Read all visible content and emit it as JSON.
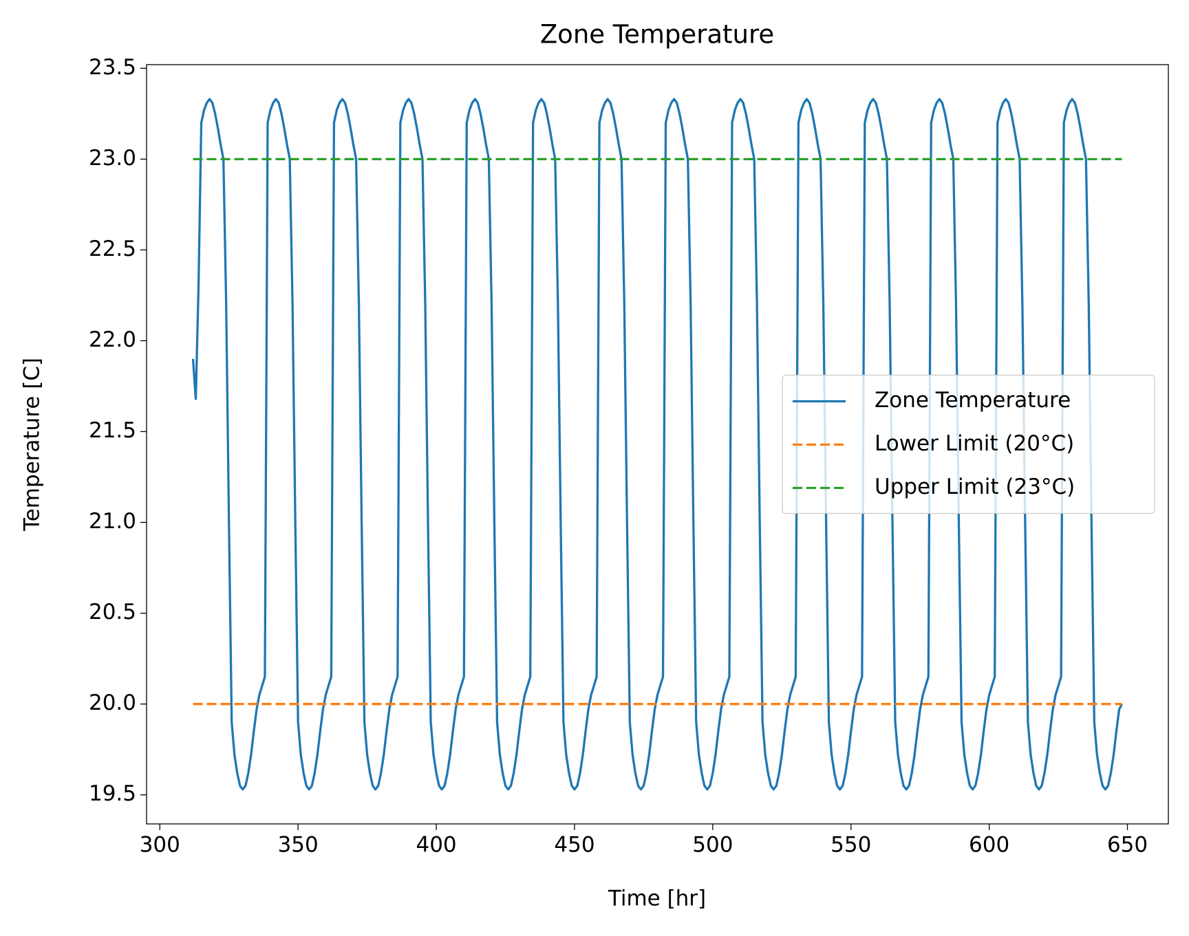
{
  "chart_data": {
    "type": "line",
    "title": "Zone Temperature",
    "xlabel": "Time [hr]",
    "ylabel": "Temperature [C]",
    "xlim": [
      295.2,
      664.8
    ],
    "ylim": [
      19.34,
      23.52
    ],
    "xticks": [
      300,
      350,
      400,
      450,
      500,
      550,
      600,
      650
    ],
    "yticks": [
      19.5,
      {
        "value": 20,
        "label": "20.0"
      },
      20.5,
      {
        "value": 21,
        "label": "21.0"
      },
      21.5,
      {
        "value": 22,
        "label": "22.0"
      },
      22.5,
      {
        "value": 23,
        "label": "23.0"
      },
      23.5
    ],
    "legend": "center right",
    "series": [
      {
        "name": "Zone Temperature",
        "color": "#1f77b4",
        "style": "solid",
        "x": [
          312,
          313,
          314,
          315,
          316,
          317,
          318,
          319,
          320,
          321,
          322,
          323,
          324,
          325,
          326,
          327,
          328,
          329,
          330,
          331,
          332,
          333,
          334,
          335,
          336,
          337,
          338,
          339,
          340,
          341,
          342,
          343,
          344,
          345,
          346,
          347,
          348,
          349,
          350,
          351,
          352,
          353,
          354,
          355,
          356,
          357,
          358,
          359,
          360,
          361,
          362,
          363,
          364,
          365,
          366,
          367,
          368,
          369,
          370,
          371,
          372,
          373,
          374,
          375,
          376,
          377,
          378,
          379,
          380,
          381,
          382,
          383,
          384,
          385,
          386,
          387,
          388,
          389,
          390,
          391,
          392,
          393,
          394,
          395,
          396,
          397,
          398,
          399,
          400,
          401,
          402,
          403,
          404,
          405,
          406,
          407,
          408,
          409,
          410,
          411,
          412,
          413,
          414,
          415,
          416,
          417,
          418,
          419,
          420,
          421,
          422,
          423,
          424,
          425,
          426,
          427,
          428,
          429,
          430,
          431,
          432,
          433,
          434,
          435,
          436,
          437,
          438,
          439,
          440,
          441,
          442,
          443,
          444,
          445,
          446,
          447,
          448,
          449,
          450,
          451,
          452,
          453,
          454,
          455,
          456,
          457,
          458,
          459,
          460,
          461,
          462,
          463,
          464,
          465,
          466,
          467,
          468,
          469,
          470,
          471,
          472,
          473,
          474,
          475,
          476,
          477,
          478,
          479,
          480,
          481,
          482,
          483,
          484,
          485,
          486,
          487,
          488,
          489,
          490,
          491,
          492,
          493,
          494,
          495,
          496,
          497,
          498,
          499,
          500,
          501,
          502,
          503,
          504,
          505,
          506,
          507,
          508,
          509,
          510,
          511,
          512,
          513,
          514,
          515,
          516,
          517,
          518,
          519,
          520,
          521,
          522,
          523,
          524,
          525,
          526,
          527,
          528,
          529,
          530,
          531,
          532,
          533,
          534,
          535,
          536,
          537,
          538,
          539,
          540,
          541,
          542,
          543,
          544,
          545,
          546,
          547,
          548,
          549,
          550,
          551,
          552,
          553,
          554,
          555,
          556,
          557,
          558,
          559,
          560,
          561,
          562,
          563,
          564,
          565,
          566,
          567,
          568,
          569,
          570,
          571,
          572,
          573,
          574,
          575,
          576,
          577,
          578,
          579,
          580,
          581,
          582,
          583,
          584,
          585,
          586,
          587,
          588,
          589,
          590,
          591,
          592,
          593,
          594,
          595,
          596,
          597,
          598,
          599,
          600,
          601,
          602,
          603,
          604,
          605,
          606,
          607,
          608,
          609,
          610,
          611,
          612,
          613,
          614,
          615,
          616,
          617,
          618,
          619,
          620,
          621,
          622,
          623,
          624,
          625,
          626,
          627,
          628,
          629,
          630,
          631,
          632,
          633,
          634,
          635,
          636,
          637,
          638,
          639,
          640,
          641,
          642,
          643,
          644,
          645,
          646,
          647,
          648
        ],
        "values": [
          21.9,
          21.68,
          22.3,
          23.2,
          23.27,
          23.31,
          23.33,
          23.31,
          23.25,
          23.17,
          23.08,
          23.0,
          22.2,
          21.0,
          19.9,
          19.72,
          19.62,
          19.55,
          19.53,
          19.55,
          19.62,
          19.72,
          19.85,
          19.97,
          20.05,
          20.1,
          20.15,
          23.2,
          23.27,
          23.31,
          23.33,
          23.31,
          23.25,
          23.17,
          23.08,
          23.0,
          22.2,
          21.0,
          19.9,
          19.72,
          19.62,
          19.55,
          19.53,
          19.55,
          19.62,
          19.72,
          19.85,
          19.97,
          20.05,
          20.1,
          20.15,
          23.2,
          23.27,
          23.31,
          23.33,
          23.31,
          23.25,
          23.17,
          23.08,
          23.0,
          22.2,
          21.0,
          19.9,
          19.72,
          19.62,
          19.55,
          19.53,
          19.55,
          19.62,
          19.72,
          19.85,
          19.97,
          20.05,
          20.1,
          20.15,
          23.2,
          23.27,
          23.31,
          23.33,
          23.31,
          23.25,
          23.17,
          23.08,
          23.0,
          22.2,
          21.0,
          19.9,
          19.72,
          19.62,
          19.55,
          19.53,
          19.55,
          19.62,
          19.72,
          19.85,
          19.97,
          20.05,
          20.1,
          20.15,
          23.2,
          23.27,
          23.31,
          23.33,
          23.31,
          23.25,
          23.17,
          23.08,
          23.0,
          22.2,
          21.0,
          19.9,
          19.72,
          19.62,
          19.55,
          19.53,
          19.55,
          19.62,
          19.72,
          19.85,
          19.97,
          20.05,
          20.1,
          20.15,
          23.2,
          23.27,
          23.31,
          23.33,
          23.31,
          23.25,
          23.17,
          23.08,
          23.0,
          22.2,
          21.0,
          19.9,
          19.72,
          19.62,
          19.55,
          19.53,
          19.55,
          19.62,
          19.72,
          19.85,
          19.97,
          20.05,
          20.1,
          20.15,
          23.2,
          23.27,
          23.31,
          23.33,
          23.31,
          23.25,
          23.17,
          23.08,
          23.0,
          22.2,
          21.0,
          19.9,
          19.72,
          19.62,
          19.55,
          19.53,
          19.55,
          19.62,
          19.72,
          19.85,
          19.97,
          20.05,
          20.1,
          20.15,
          23.2,
          23.27,
          23.31,
          23.33,
          23.31,
          23.25,
          23.17,
          23.08,
          23.0,
          22.2,
          21.0,
          19.9,
          19.72,
          19.62,
          19.55,
          19.53,
          19.55,
          19.62,
          19.72,
          19.85,
          19.97,
          20.05,
          20.1,
          20.15,
          23.2,
          23.27,
          23.31,
          23.33,
          23.31,
          23.25,
          23.17,
          23.08,
          23.0,
          22.2,
          21.0,
          19.9,
          19.72,
          19.62,
          19.55,
          19.53,
          19.55,
          19.62,
          19.72,
          19.85,
          19.97,
          20.05,
          20.1,
          20.15,
          23.2,
          23.27,
          23.31,
          23.33,
          23.31,
          23.25,
          23.17,
          23.08,
          23.0,
          22.2,
          21.0,
          19.9,
          19.72,
          19.62,
          19.55,
          19.53,
          19.55,
          19.62,
          19.72,
          19.85,
          19.97,
          20.05,
          20.1,
          20.15,
          23.2,
          23.27,
          23.31,
          23.33,
          23.31,
          23.25,
          23.17,
          23.08,
          23.0,
          22.2,
          21.0,
          19.9,
          19.72,
          19.62,
          19.55,
          19.53,
          19.55,
          19.62,
          19.72,
          19.85,
          19.97,
          20.05,
          20.1,
          20.15,
          23.2,
          23.27,
          23.31,
          23.33,
          23.31,
          23.25,
          23.17,
          23.08,
          23.0,
          22.2,
          21.0,
          19.9,
          19.72,
          19.62,
          19.55,
          19.53,
          19.55,
          19.62,
          19.72,
          19.85,
          19.97,
          20.05,
          20.1,
          20.15,
          23.2,
          23.27,
          23.31,
          23.33,
          23.31,
          23.25,
          23.17,
          23.08,
          23.0,
          22.2,
          21.0,
          19.9,
          19.72,
          19.62,
          19.55,
          19.53,
          19.55,
          19.62,
          19.72,
          19.85,
          19.97,
          20.05,
          20.1,
          20.15,
          23.2,
          23.27,
          23.31,
          23.33,
          23.31,
          23.25,
          23.17,
          23.08,
          23.0,
          22.2,
          21.0,
          19.9,
          19.72,
          19.62,
          19.55,
          19.53,
          19.55,
          19.62,
          19.72,
          19.85,
          19.97,
          20.0
        ]
      },
      {
        "name": "Lower Limit (20°C)",
        "color": "#ff7f0e",
        "style": "dashed",
        "x": [
          312,
          648
        ],
        "values": [
          20,
          20
        ]
      },
      {
        "name": "Upper Limit (23°C)",
        "color": "#2ca02c",
        "style": "dashed",
        "x": [
          312,
          648
        ],
        "values": [
          23,
          23
        ]
      }
    ]
  }
}
